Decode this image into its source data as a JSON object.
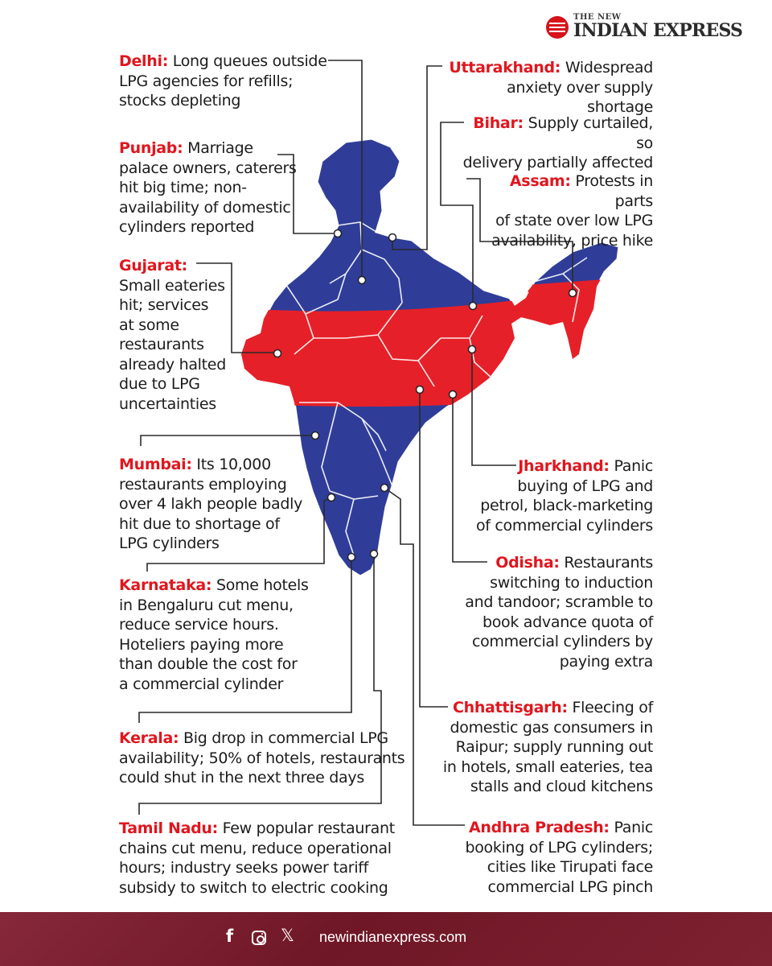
{
  "brand": {
    "line1": "THE NEW",
    "line2": "INDIAN EXPRESS",
    "emblem_color": "#d6121a"
  },
  "colors": {
    "accent_red": "#e0161e",
    "map_blue": "#2f3d99",
    "map_red": "#e62028",
    "footer_bg": "#7b1f2e"
  },
  "map": {
    "subject": "India",
    "band_color_meaning": ""
  },
  "notes": [
    {
      "id": "delhi",
      "state": "Delhi:",
      "lines": [
        " Long queues outside",
        "LPG agencies for refills;",
        "stocks depleting"
      ]
    },
    {
      "id": "punjab",
      "state": "Punjab:",
      "lines": [
        " Marriage",
        "palace owners, caterers",
        "hit big time; non-",
        "availability of domestic",
        "cylinders reported"
      ]
    },
    {
      "id": "gujarat",
      "state": "Gujarat:",
      "lines": [
        "",
        "Small eateries",
        "hit; services",
        "at some",
        "restaurants",
        "already halted",
        "due to LPG",
        "uncertainties"
      ]
    },
    {
      "id": "mumbai",
      "state": "Mumbai:",
      "lines": [
        " Its 10,000",
        "restaurants employing",
        "over 4 lakh people badly",
        "hit due to shortage of",
        "LPG cylinders"
      ]
    },
    {
      "id": "karnataka",
      "state": "Karnataka:",
      "lines": [
        " Some hotels",
        "in Bengaluru cut menu,",
        "reduce service hours.",
        "Hoteliers paying more",
        "than double the cost for",
        "a commercial cylinder"
      ]
    },
    {
      "id": "kerala",
      "state": "Kerala:",
      "lines": [
        " Big drop in commercial LPG",
        "availability; 50% of hotels, restaurants",
        "could shut in the next three days"
      ]
    },
    {
      "id": "tamil_nadu",
      "state": "Tamil Nadu:",
      "lines": [
        " Few popular restaurant",
        "chains cut menu, reduce operational",
        "hours; industry seeks power tariff",
        "subsidy to switch to electric cooking"
      ]
    },
    {
      "id": "uttarakhand",
      "state": "Uttarakhand:",
      "lines": [
        " Widespread",
        "anxiety over supply shortage"
      ]
    },
    {
      "id": "bihar",
      "state": "Bihar:",
      "lines": [
        " Supply curtailed, so",
        "delivery partially affected"
      ]
    },
    {
      "id": "assam",
      "state": "Assam:",
      "lines": [
        " Protests in parts",
        "of state over low LPG",
        "availability, price hike"
      ]
    },
    {
      "id": "jharkhand",
      "state": "Jharkhand:",
      "lines": [
        " Panic",
        "buying of LPG and",
        "petrol, black-marketing",
        "of commercial cylinders"
      ]
    },
    {
      "id": "odisha",
      "state": "Odisha:",
      "lines": [
        " Restaurants",
        "switching to induction",
        "and tandoor; scramble to",
        "book advance quota of",
        "commercial cylinders by",
        "paying extra"
      ]
    },
    {
      "id": "chhattisgarh",
      "state": "Chhattisgarh:",
      "lines": [
        " Fleecing of",
        "domestic gas consumers in",
        "Raipur; supply running out",
        "in hotels, small eateries, tea",
        "stalls and cloud kitchens"
      ]
    },
    {
      "id": "andhra_pradesh",
      "state": "Andhra Pradesh:",
      "lines": [
        " Panic",
        "booking of LPG cylinders;",
        "cities like Tirupati face",
        "commercial LPG pinch"
      ]
    }
  ],
  "footer": {
    "icons": [
      "facebook-icon",
      "instagram-icon",
      "x-icon"
    ],
    "facebook_glyph": "f",
    "x_glyph": "𝕏",
    "website": "newindianexpress.com"
  }
}
